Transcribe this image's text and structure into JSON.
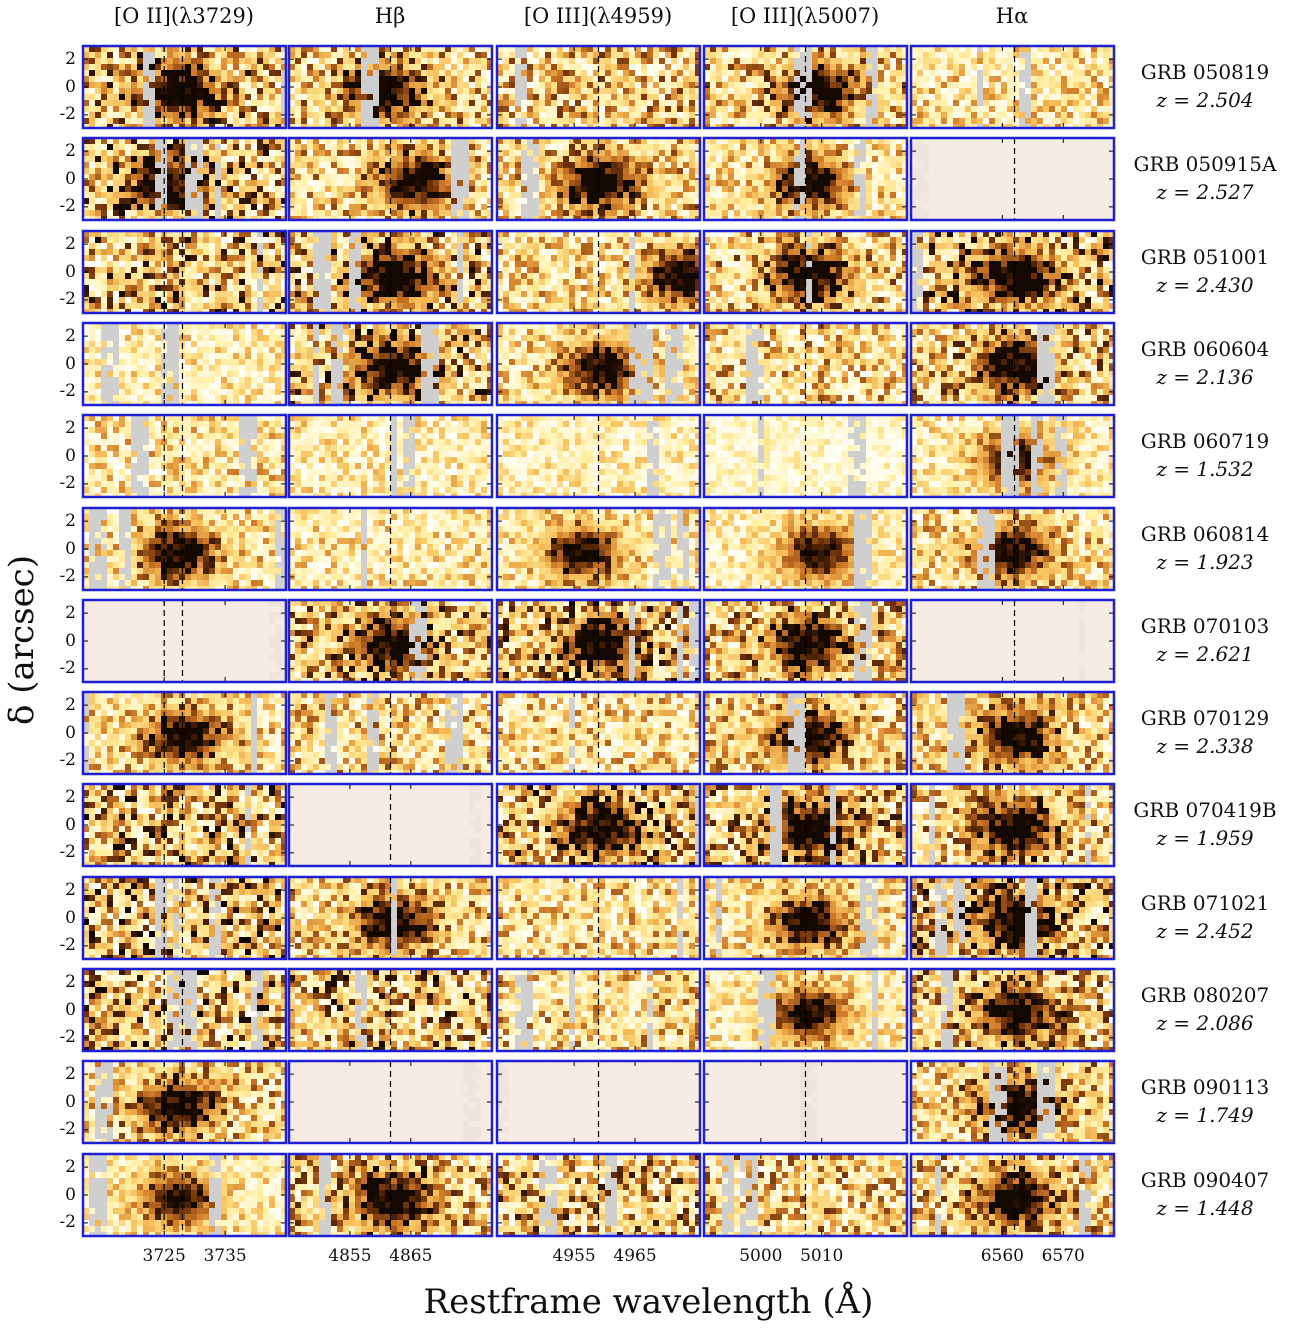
{
  "figure": {
    "columns": [
      {
        "title": "[O II](λ3729)",
        "ticks": [
          {
            "label": "3725",
            "rel": 0.4
          },
          {
            "label": "3735",
            "rel": 0.7
          }
        ],
        "lines": [
          0.4,
          0.49
        ]
      },
      {
        "title": "Hβ",
        "ticks": [
          {
            "label": "4855",
            "rel": 0.3
          },
          {
            "label": "4865",
            "rel": 0.6
          }
        ],
        "lines": [
          0.5
        ]
      },
      {
        "title": "[O III](λ4959)",
        "ticks": [
          {
            "label": "4955",
            "rel": 0.38
          },
          {
            "label": "4965",
            "rel": 0.68
          }
        ],
        "lines": [
          0.5
        ]
      },
      {
        "title": "[O III](λ5007)",
        "ticks": [
          {
            "label": "5000",
            "rel": 0.28
          },
          {
            "label": "5010",
            "rel": 0.58
          }
        ],
        "lines": [
          0.5
        ]
      },
      {
        "title": "Hα",
        "ticks": [
          {
            "label": "6560",
            "rel": 0.45
          },
          {
            "label": "6570",
            "rel": 0.75
          }
        ],
        "lines": [
          0.51
        ]
      }
    ],
    "y_ticks": [
      "2",
      "0",
      "-2"
    ],
    "y_label": "δ (arcsec)",
    "x_label": "Restframe wavelength (Å)",
    "rows": [
      {
        "grb": "GRB 050819",
        "z": "z = 2.504",
        "intensity": [
          0.7,
          0.6,
          0.6,
          0.6,
          0.45
        ],
        "faint": [
          false,
          false,
          false,
          false,
          false
        ],
        "blob": [
          0.45,
          0.45,
          0,
          0.55,
          0
        ]
      },
      {
        "grb": "GRB 050915A",
        "z": "z = 2.527",
        "intensity": [
          0.75,
          0.55,
          0.55,
          0.45,
          0.1
        ],
        "faint": [
          false,
          false,
          false,
          false,
          true
        ],
        "blob": [
          0.4,
          0.6,
          0.5,
          0.5,
          0
        ]
      },
      {
        "grb": "GRB 051001",
        "z": "z = 2.430",
        "intensity": [
          0.75,
          0.75,
          0.5,
          0.6,
          0.8
        ],
        "faint": [
          false,
          false,
          false,
          false,
          false
        ],
        "blob": [
          0,
          0.5,
          0.9,
          0.5,
          0.5
        ]
      },
      {
        "grb": "GRB 060604",
        "z": "z = 2.136",
        "intensity": [
          0.35,
          0.75,
          0.45,
          0.55,
          0.65
        ],
        "faint": [
          false,
          false,
          false,
          false,
          false
        ],
        "blob": [
          0,
          0.5,
          0.5,
          0,
          0.5
        ]
      },
      {
        "grb": "GRB 060719",
        "z": "z = 1.532",
        "intensity": [
          0.45,
          0.35,
          0.3,
          0.2,
          0.35
        ],
        "faint": [
          false,
          false,
          false,
          false,
          false
        ],
        "blob": [
          0,
          0,
          0,
          0,
          0.5
        ]
      },
      {
        "grb": "GRB 060814",
        "z": "z = 1.923",
        "intensity": [
          0.45,
          0.4,
          0.4,
          0.3,
          0.5
        ],
        "faint": [
          false,
          false,
          false,
          false,
          false
        ],
        "blob": [
          0.45,
          0,
          0.4,
          0.55,
          0.48
        ]
      },
      {
        "grb": "GRB 070103",
        "z": "z = 2.621",
        "intensity": [
          0.1,
          0.7,
          0.75,
          0.65,
          0.1
        ],
        "faint": [
          true,
          false,
          false,
          false,
          true
        ],
        "blob": [
          0,
          0.5,
          0.5,
          0.5,
          0
        ]
      },
      {
        "grb": "GRB 070129",
        "z": "z = 2.338",
        "intensity": [
          0.5,
          0.55,
          0.5,
          0.55,
          0.55
        ],
        "faint": [
          false,
          false,
          false,
          false,
          false
        ],
        "blob": [
          0.48,
          0,
          0,
          0.5,
          0.5
        ]
      },
      {
        "grb": "GRB 070419B",
        "z": "z = 1.959",
        "intensity": [
          0.8,
          0.1,
          0.75,
          0.7,
          0.6
        ],
        "faint": [
          false,
          true,
          false,
          false,
          false
        ],
        "blob": [
          0,
          0,
          0.5,
          0.5,
          0.5
        ]
      },
      {
        "grb": "GRB 071021",
        "z": "z = 2.452",
        "intensity": [
          0.8,
          0.55,
          0.5,
          0.45,
          0.8
        ],
        "faint": [
          false,
          false,
          false,
          false,
          false
        ],
        "blob": [
          0,
          0.5,
          0,
          0.5,
          0.5
        ]
      },
      {
        "grb": "GRB 080207",
        "z": "z = 2.086",
        "intensity": [
          0.8,
          0.75,
          0.55,
          0.35,
          0.65
        ],
        "faint": [
          false,
          false,
          false,
          false,
          false
        ],
        "blob": [
          0,
          0,
          0,
          0.5,
          0.5
        ]
      },
      {
        "grb": "GRB 090113",
        "z": "z = 1.749",
        "intensity": [
          0.55,
          0.1,
          0.1,
          0.1,
          0.6
        ],
        "faint": [
          false,
          true,
          true,
          true,
          false
        ],
        "blob": [
          0.45,
          0,
          0,
          0,
          0.5
        ]
      },
      {
        "grb": "GRB 090407",
        "z": "z = 1.448",
        "intensity": [
          0.35,
          0.65,
          0.7,
          0.6,
          0.6
        ],
        "faint": [
          false,
          false,
          false,
          false,
          false
        ],
        "blob": [
          0.45,
          0.5,
          0,
          0,
          0.5
        ]
      }
    ]
  }
}
